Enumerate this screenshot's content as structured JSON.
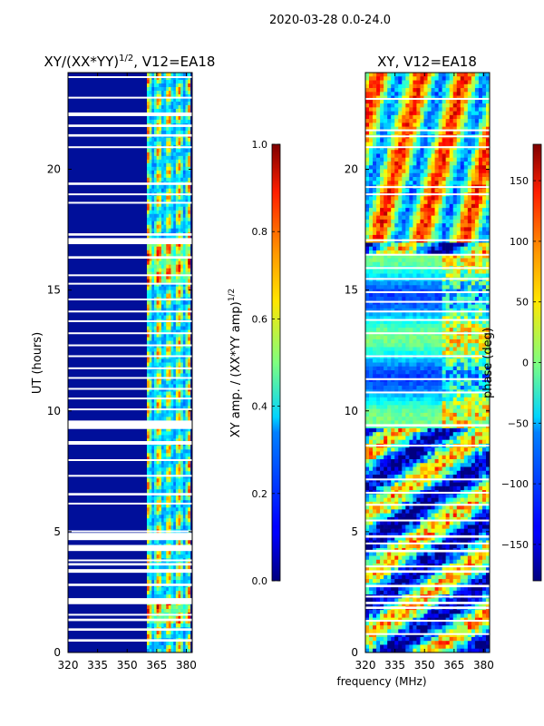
{
  "figure_title": "2020-03-28 0.0-24.0",
  "shared_xlabel": "frequency (MHz)",
  "chart_data": [
    {
      "type": "heatmap",
      "title_main": "XY/(XX*YY)",
      "title_sup": "1/2",
      "title_tail": ", V12=EA18",
      "xlabel": "",
      "ylabel": "UT (hours)",
      "xlim": [
        320,
        383
      ],
      "ylim": [
        0,
        24
      ],
      "xticks": [
        320,
        335,
        350,
        365,
        380
      ],
      "yticks": [
        0,
        5,
        10,
        15,
        20
      ],
      "colorbar": {
        "label_main": "XY amp. / (XX*YY amp)",
        "label_sup": "1/2",
        "range": [
          0.0,
          1.0
        ],
        "ticks": [
          "0.0",
          "0.2",
          "0.4",
          "0.6",
          "0.8",
          "1.0"
        ],
        "tick_values": [
          0.0,
          0.2,
          0.4,
          0.6,
          0.8,
          1.0
        ],
        "colormap": "jet"
      },
      "active_band_mhz": [
        360,
        382
      ],
      "missing_hours": [
        [
          0.45,
          0.55
        ],
        [
          0.9,
          1.0
        ],
        [
          1.3,
          1.4
        ],
        [
          1.55,
          1.6
        ],
        [
          2.0,
          2.25
        ],
        [
          2.75,
          2.85
        ],
        [
          3.3,
          3.45
        ],
        [
          3.6,
          3.7
        ],
        [
          3.8,
          3.85
        ],
        [
          4.2,
          4.45
        ],
        [
          4.65,
          4.95
        ],
        [
          5.0,
          5.05
        ],
        [
          6.15,
          6.2
        ],
        [
          6.5,
          6.6
        ],
        [
          7.3,
          7.35
        ],
        [
          7.95,
          8.0
        ],
        [
          8.6,
          8.75
        ],
        [
          9.25,
          9.6
        ],
        [
          10.05,
          10.1
        ],
        [
          10.5,
          10.55
        ],
        [
          10.9,
          10.95
        ],
        [
          11.35,
          11.4
        ],
        [
          11.75,
          11.8
        ],
        [
          12.25,
          12.3
        ],
        [
          12.7,
          12.75
        ],
        [
          13.2,
          13.25
        ],
        [
          13.7,
          13.75
        ],
        [
          14.1,
          14.15
        ],
        [
          14.6,
          14.65
        ],
        [
          15.25,
          15.3
        ],
        [
          15.6,
          15.65
        ],
        [
          16.3,
          16.4
        ],
        [
          16.9,
          17.15
        ],
        [
          17.25,
          17.35
        ],
        [
          18.6,
          18.65
        ],
        [
          18.95,
          19.0
        ],
        [
          19.35,
          19.45
        ],
        [
          20.9,
          20.95
        ],
        [
          21.35,
          21.45
        ],
        [
          21.75,
          21.85
        ],
        [
          22.2,
          22.35
        ],
        [
          22.95,
          23.0
        ],
        [
          23.8,
          23.85
        ]
      ]
    },
    {
      "type": "heatmap",
      "title": "XY, V12=EA18",
      "xlabel": "frequency (MHz)",
      "ylabel": "",
      "xlim": [
        320,
        383
      ],
      "ylim": [
        0,
        24
      ],
      "xticks": [
        320,
        335,
        350,
        365,
        380
      ],
      "yticks": [
        0,
        5,
        10,
        15,
        20
      ],
      "colorbar": {
        "label": "phase (deg)",
        "range": [
          -180,
          180
        ],
        "ticks": [
          "150",
          "100",
          "50",
          "0",
          "−50",
          "−100",
          "−150"
        ],
        "tick_values": [
          150,
          100,
          50,
          0,
          -50,
          -100,
          -150
        ],
        "colormap": "jet"
      },
      "missing_hours": [
        [
          0.75,
          0.8
        ],
        [
          1.3,
          1.35
        ],
        [
          1.8,
          1.9
        ],
        [
          2.0,
          2.1
        ],
        [
          2.3,
          2.35
        ],
        [
          2.7,
          2.8
        ],
        [
          3.3,
          3.4
        ],
        [
          3.55,
          3.6
        ],
        [
          4.15,
          4.25
        ],
        [
          4.5,
          4.55
        ],
        [
          4.75,
          4.85
        ],
        [
          5.45,
          5.5
        ],
        [
          6.1,
          6.15
        ],
        [
          6.6,
          6.65
        ],
        [
          7.15,
          7.2
        ],
        [
          8.55,
          8.6
        ],
        [
          9.35,
          9.45
        ],
        [
          10.75,
          10.8
        ],
        [
          11.3,
          11.35
        ],
        [
          12.25,
          12.3
        ],
        [
          13.2,
          13.25
        ],
        [
          13.75,
          13.8
        ],
        [
          14.1,
          14.15
        ],
        [
          14.5,
          14.55
        ],
        [
          14.9,
          14.95
        ],
        [
          15.45,
          15.5
        ],
        [
          15.9,
          15.95
        ],
        [
          16.45,
          16.5
        ],
        [
          17.05,
          17.1
        ],
        [
          18.95,
          19.0
        ],
        [
          19.25,
          19.3
        ],
        [
          20.9,
          20.95
        ],
        [
          21.35,
          21.4
        ],
        [
          21.6,
          21.65
        ],
        [
          22.9,
          22.95
        ]
      ]
    }
  ]
}
